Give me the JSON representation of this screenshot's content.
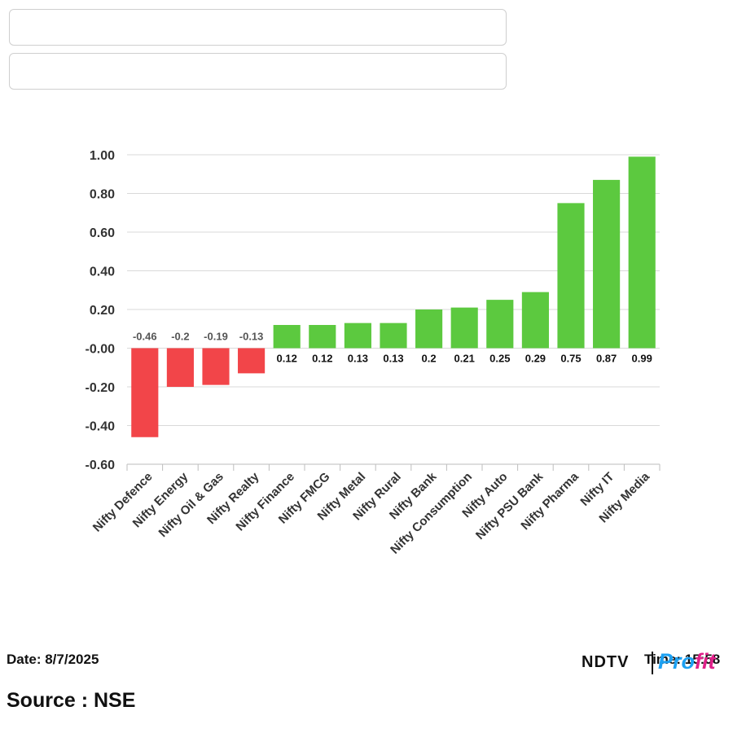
{
  "inputs": [
    {
      "value": "",
      "placeholder": ""
    },
    {
      "value": "",
      "placeholder": ""
    }
  ],
  "chart_data": {
    "type": "bar",
    "title": "",
    "xlabel": "",
    "ylabel": "",
    "categories": [
      "Nifty Defence",
      "Nifty Energy",
      "Nifty Oil & Gas",
      "Nifty Realty",
      "Nifty Finance",
      "Nifty FMCG",
      "Nifty Metal",
      "Nifty Rural",
      "Nifty Bank",
      "Nifty Consumption",
      "Nifty Auto",
      "Nifty PSU Bank",
      "Nifty Pharma",
      "Nifty IT",
      "Nifty Media"
    ],
    "values": [
      -0.46,
      -0.2,
      -0.19,
      -0.13,
      0.12,
      0.12,
      0.13,
      0.13,
      0.2,
      0.21,
      0.25,
      0.29,
      0.75,
      0.87,
      0.99
    ],
    "data_labels": [
      "-0.46",
      "-0.2",
      "-0.19",
      "-0.13",
      "0.12",
      "0.12",
      "0.13",
      "0.13",
      "0.2",
      "0.21",
      "0.25",
      "0.29",
      "0.75",
      "0.87",
      "0.99"
    ],
    "ylim": [
      -0.6,
      1.0
    ],
    "yticks": [
      1.0,
      0.8,
      0.6,
      0.4,
      0.2,
      0.0,
      -0.2,
      -0.4,
      -0.6
    ],
    "ytick_labels": [
      "1.00",
      "0.80",
      "0.60",
      "0.40",
      "0.20",
      "-0.00",
      "-0.20",
      "-0.40",
      "-0.60"
    ],
    "grid": true,
    "legend": "none",
    "colors": {
      "positive": "#5cc93f",
      "negative": "#f24549",
      "grid": "#d9d9d9",
      "axis": "#bdbdbd",
      "text": "#333333"
    }
  },
  "footer": {
    "date": "Date: 8/7/2025",
    "time": "Time: 15:58",
    "source": "Source : NSE"
  },
  "logo": {
    "brand": "NDTV",
    "sub_prefix": "Pro",
    "sub_suffix": "fit"
  }
}
